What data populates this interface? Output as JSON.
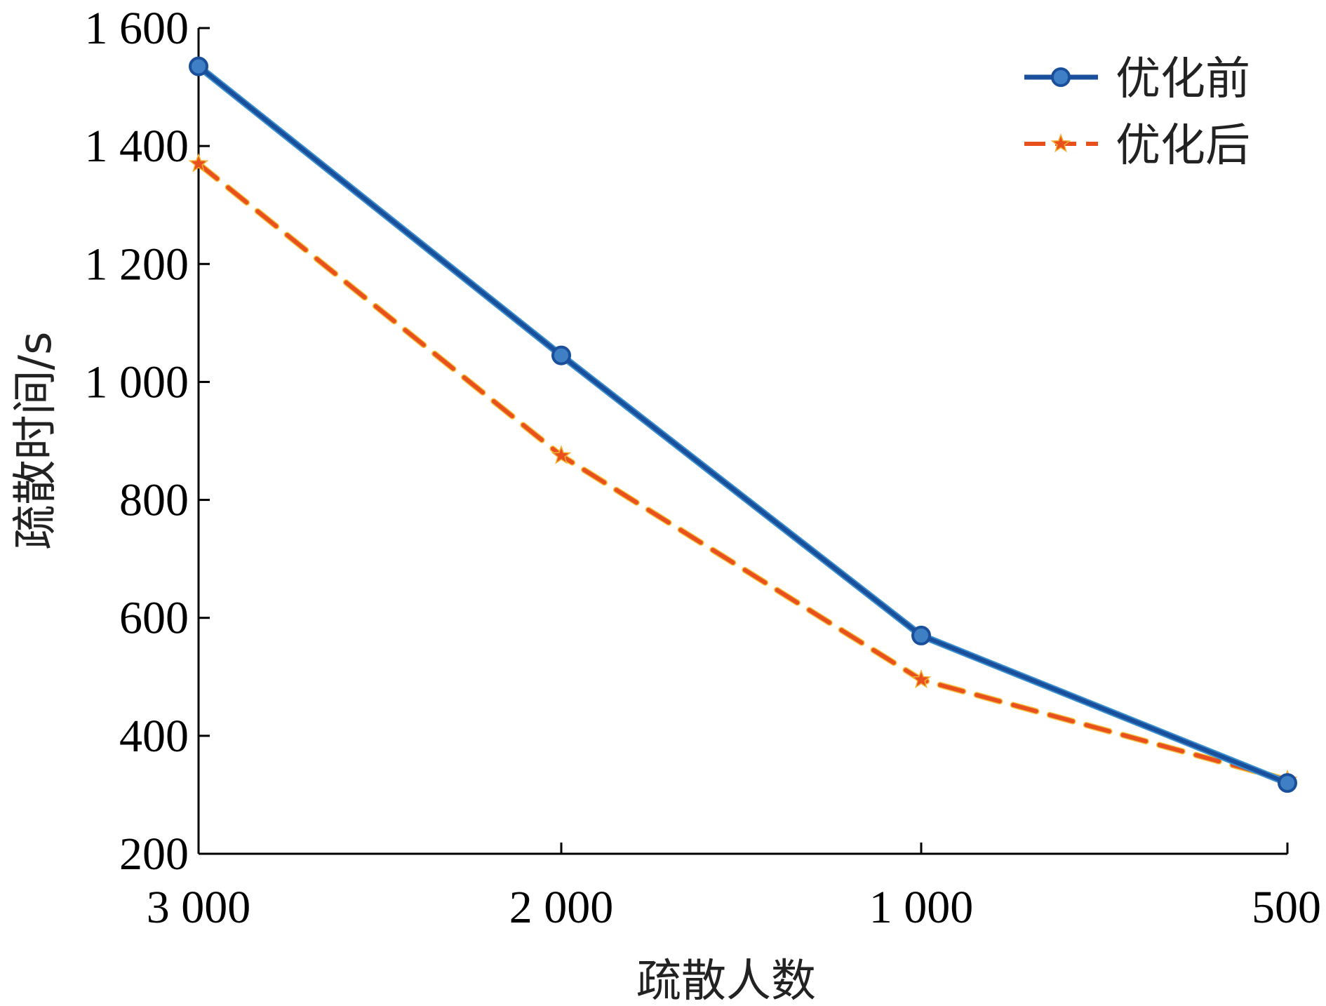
{
  "chart_data": {
    "type": "line",
    "title": "",
    "xlabel": "疏散人数",
    "ylabel": "疏散时间/s",
    "categories": [
      "3 000",
      "2 000",
      "1 000",
      "500"
    ],
    "ylim": [
      200,
      1600
    ],
    "yticks": [
      "200",
      "400",
      "600",
      "800",
      "1 000",
      "1 200",
      "1 400",
      "1 600"
    ],
    "ytick_values": [
      200,
      400,
      600,
      800,
      1000,
      1200,
      1400,
      1600
    ],
    "grid": false,
    "legend_position": "top-right",
    "series": [
      {
        "name": "优化前",
        "values": [
          1535,
          1045,
          570,
          320
        ],
        "color": "#1a4f9c",
        "line_style": "solid",
        "marker": "circle"
      },
      {
        "name": "优化后",
        "values": [
          1370,
          875,
          495,
          325
        ],
        "color": "#e8501e",
        "line_style": "dashed",
        "marker": "star"
      }
    ]
  }
}
